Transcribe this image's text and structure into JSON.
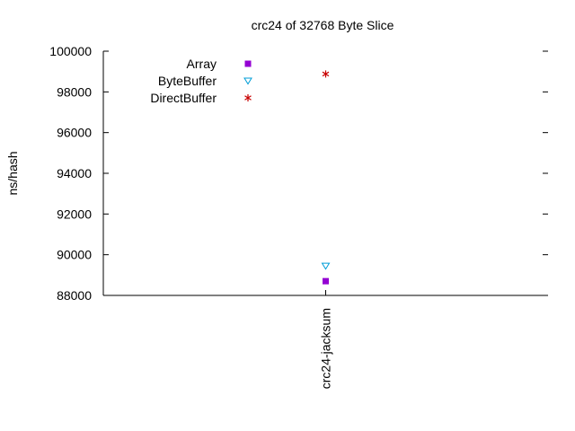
{
  "chart_data": {
    "type": "scatter",
    "title": "crc24 of 32768 Byte Slice",
    "xlabel": "",
    "ylabel": "ns/hash",
    "categories": [
      "crc24-jacksum"
    ],
    "ylim": [
      88000,
      100000
    ],
    "yticks": [
      88000,
      90000,
      92000,
      94000,
      96000,
      98000,
      100000
    ],
    "grid": false,
    "legend_position": "top-left",
    "series": [
      {
        "name": "Array",
        "marker": "filled-square",
        "color": "#9400d3",
        "values": [
          88700
        ]
      },
      {
        "name": "ByteBuffer",
        "marker": "open-triangle-down",
        "color": "#009ed7",
        "values": [
          89450
        ]
      },
      {
        "name": "DirectBuffer",
        "marker": "asterisk",
        "color": "#c80000",
        "values": [
          98880
        ]
      }
    ]
  }
}
